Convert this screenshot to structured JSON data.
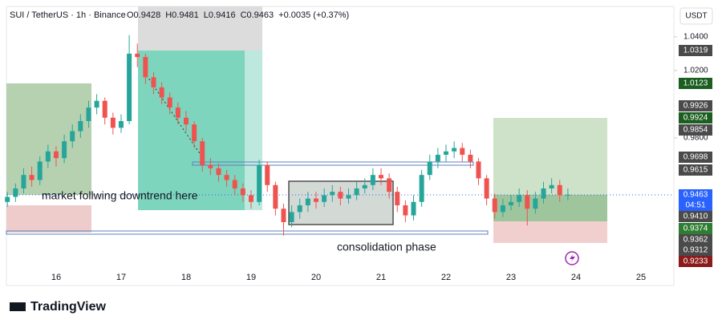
{
  "chart_data": {
    "type": "candlestick",
    "title": "SUI / TetherUS · 1h · Binance",
    "ohlc_header": [
      "O0.9428",
      "H0.9481",
      "L0.9416",
      "C0.9463",
      "+0.0035 (+0.37%)"
    ],
    "currency": "USDT",
    "annotations": [
      "market follwing downtrend here",
      "consolidation phase"
    ],
    "brand": "TradingView",
    "up_color": "#26a69a",
    "down_color": "#ef5350",
    "xlim": [
      15.235,
      25.506
    ],
    "xticks": [
      16,
      17,
      18,
      19,
      20,
      21,
      22,
      23,
      24,
      25
    ],
    "ylim": [
      0.9,
      1.0571
    ],
    "yticks": [
      {
        "value": 1.04,
        "label": "1.0400"
      },
      {
        "value": 1.02,
        "label": "1.0200"
      },
      {
        "value": 0.98,
        "label": "0.9800"
      }
    ],
    "price_labels": [
      {
        "text": "1.0319",
        "color": "#4a4a4a"
      },
      {
        "text": "1.0123",
        "color": "#1b5e20"
      },
      {
        "text": "0.9926",
        "color": "#4a4a4a"
      },
      {
        "text": "0.9924",
        "color": "#1b5e20"
      },
      {
        "text": "0.9854",
        "color": "#4a4a4a"
      },
      {
        "text": "0.9698",
        "color": "#4a4a4a"
      },
      {
        "text": "0.9615",
        "color": "#4a4a4a"
      },
      {
        "text": "0.9463",
        "color": "#2962ff"
      },
      {
        "text": "04:51",
        "color": "#2962ff"
      },
      {
        "text": "0.9410",
        "color": "#4a4a4a"
      },
      {
        "text": "0.9374",
        "color": "#2e7d32"
      },
      {
        "text": "0.9362",
        "color": "#4a4a4a"
      },
      {
        "text": "0.9312",
        "color": "#4a4a4a"
      },
      {
        "text": "0.9233",
        "color": "#8b1a1a"
      }
    ],
    "x": [
      15.25,
      15.375,
      15.5,
      15.625,
      15.75,
      15.875,
      16.0,
      16.125,
      16.25,
      16.375,
      16.5,
      16.625,
      16.75,
      16.875,
      17.0,
      17.125,
      17.25,
      17.375,
      17.5,
      17.625,
      17.75,
      17.875,
      18.0,
      18.125,
      18.25,
      18.375,
      18.5,
      18.625,
      18.75,
      18.875,
      19.0,
      19.125,
      19.25,
      19.375,
      19.5,
      19.625,
      19.75,
      19.875,
      20.0,
      20.125,
      20.25,
      20.375,
      20.5,
      20.625,
      20.75,
      20.875,
      21.0,
      21.125,
      21.25,
      21.375,
      21.5,
      21.625,
      21.75,
      21.875,
      22.0,
      22.125,
      22.25,
      22.375,
      22.5,
      22.625,
      22.75,
      22.875,
      23.0,
      23.125,
      23.25,
      23.375,
      23.5,
      23.625,
      23.75,
      23.875
    ],
    "open": [
      0.942,
      0.945,
      0.95,
      0.958,
      0.955,
      0.966,
      0.972,
      0.968,
      0.978,
      0.984,
      0.99,
      0.998,
      1.002,
      0.992,
      0.986,
      0.99,
      1.03,
      1.028,
      1.016,
      1.01,
      1.004,
      0.998,
      0.992,
      0.988,
      0.978,
      0.964,
      0.962,
      0.958,
      0.955,
      0.95,
      0.946,
      0.942,
      0.964,
      0.952,
      0.938,
      0.93,
      0.936,
      0.94,
      0.944,
      0.942,
      0.946,
      0.948,
      0.944,
      0.946,
      0.95,
      0.952,
      0.958,
      0.956,
      0.948,
      0.94,
      0.934,
      0.942,
      0.958,
      0.966,
      0.97,
      0.972,
      0.974,
      0.97,
      0.966,
      0.956,
      0.944,
      0.936,
      0.94,
      0.942,
      0.946,
      0.938,
      0.944,
      0.95,
      0.952,
      0.946
    ],
    "high": [
      0.948,
      0.953,
      0.962,
      0.963,
      0.969,
      0.976,
      0.975,
      0.982,
      0.988,
      0.994,
      1.002,
      1.006,
      1.004,
      0.995,
      0.994,
      1.041,
      1.036,
      1.03,
      1.019,
      1.013,
      1.007,
      1.001,
      0.996,
      0.99,
      0.98,
      0.968,
      0.965,
      0.961,
      0.958,
      0.953,
      0.949,
      0.967,
      0.966,
      0.954,
      0.941,
      0.94,
      0.944,
      0.948,
      0.948,
      0.95,
      0.952,
      0.951,
      0.95,
      0.954,
      0.956,
      0.962,
      0.962,
      0.959,
      0.951,
      0.943,
      0.946,
      0.961,
      0.97,
      0.974,
      0.976,
      0.978,
      0.977,
      0.973,
      0.968,
      0.958,
      0.947,
      0.944,
      0.946,
      0.95,
      0.949,
      0.948,
      0.954,
      0.956,
      0.955,
      0.95
    ],
    "low": [
      0.939,
      0.942,
      0.947,
      0.951,
      0.952,
      0.962,
      0.963,
      0.965,
      0.974,
      0.98,
      0.986,
      0.994,
      0.988,
      0.982,
      0.983,
      0.988,
      1.022,
      1.012,
      1.006,
      1.0,
      0.994,
      0.988,
      0.984,
      0.974,
      0.96,
      0.958,
      0.954,
      0.951,
      0.946,
      0.942,
      0.938,
      0.94,
      0.948,
      0.934,
      0.922,
      0.927,
      0.932,
      0.936,
      0.938,
      0.939,
      0.942,
      0.94,
      0.941,
      0.943,
      0.947,
      0.949,
      0.952,
      0.944,
      0.936,
      0.93,
      0.931,
      0.939,
      0.955,
      0.962,
      0.966,
      0.968,
      0.966,
      0.962,
      0.952,
      0.94,
      0.932,
      0.933,
      0.937,
      0.939,
      0.928,
      0.935,
      0.941,
      0.947,
      0.942,
      0.943
    ],
    "close": [
      0.945,
      0.95,
      0.958,
      0.955,
      0.966,
      0.972,
      0.968,
      0.978,
      0.984,
      0.99,
      0.998,
      1.002,
      0.992,
      0.986,
      0.99,
      1.03,
      1.028,
      1.016,
      1.01,
      1.004,
      0.998,
      0.992,
      0.988,
      0.978,
      0.964,
      0.962,
      0.958,
      0.955,
      0.95,
      0.946,
      0.942,
      0.964,
      0.952,
      0.938,
      0.93,
      0.936,
      0.94,
      0.944,
      0.942,
      0.946,
      0.948,
      0.944,
      0.946,
      0.95,
      0.952,
      0.958,
      0.956,
      0.948,
      0.94,
      0.934,
      0.942,
      0.958,
      0.966,
      0.97,
      0.972,
      0.974,
      0.97,
      0.966,
      0.956,
      0.944,
      0.936,
      0.94,
      0.942,
      0.946,
      0.938,
      0.944,
      0.95,
      0.952,
      0.946,
      0.9463
    ]
  }
}
